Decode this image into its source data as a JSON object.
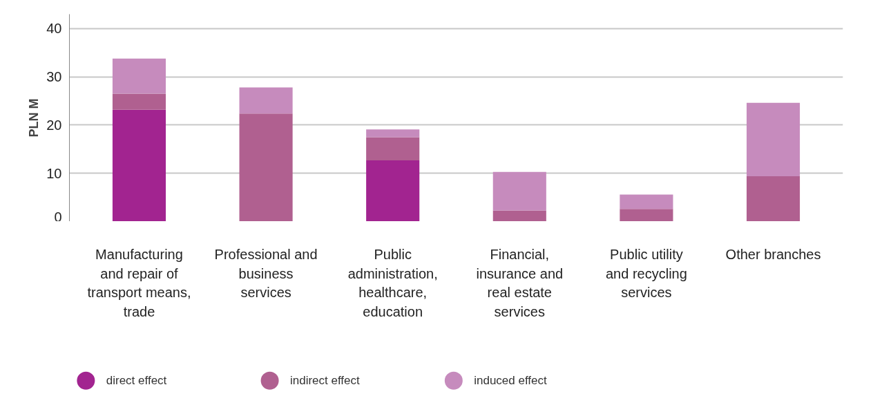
{
  "chart_data": {
    "type": "bar",
    "stacked": true,
    "ylabel": "PLN M",
    "categories": [
      "Manufacturing and repair of transport means, trade",
      "Professional and business services",
      "Public administration, healthcare, education",
      "Financial, insurance and real estate services",
      "Public utility and recycling services",
      "Other branches"
    ],
    "series": [
      {
        "name": "direct effect",
        "color": "#a22490",
        "values": [
          23.2,
          0,
          12.7,
          0,
          0,
          0
        ]
      },
      {
        "name": "indirect effect",
        "color": "#b06090",
        "values": [
          3.3,
          22.4,
          4.8,
          2.3,
          2.6,
          9.4
        ]
      },
      {
        "name": "induced effect",
        "color": "#c68bbd",
        "values": [
          7.3,
          5.4,
          1.6,
          8.0,
          3.0,
          15.2
        ]
      }
    ],
    "ylim": [
      0,
      43
    ],
    "yticks": [
      0,
      10,
      20,
      30,
      40
    ],
    "grid": "y",
    "legend": "bottom"
  }
}
